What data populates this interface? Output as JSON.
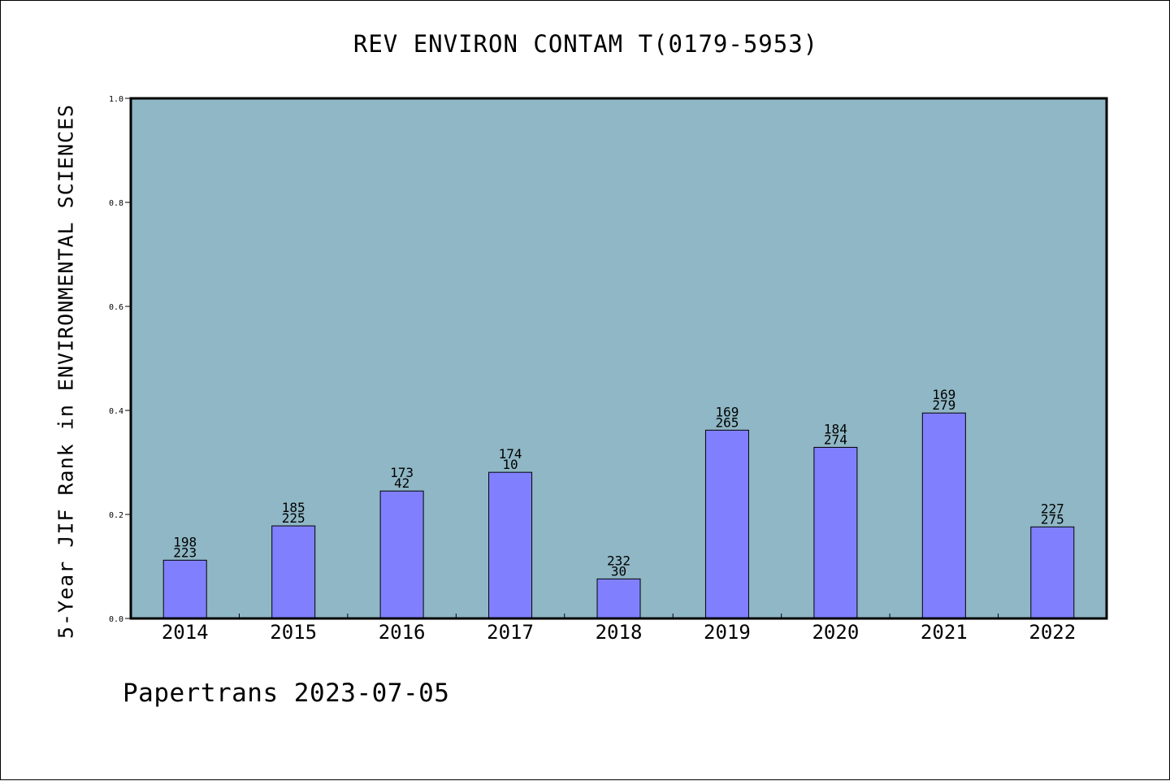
{
  "chart_data": {
    "type": "bar",
    "title": "REV ENVIRON CONTAM T(0179-5953)",
    "ylabel": "5-Year JIF Rank in ENVIRONMENTAL SCIENCES",
    "xlabel": "",
    "categories": [
      "2014",
      "2015",
      "2016",
      "2017",
      "2018",
      "2019",
      "2020",
      "2021",
      "2022"
    ],
    "values": [
      0.112,
      0.178,
      0.245,
      0.281,
      0.076,
      0.362,
      0.329,
      0.395,
      0.176
    ],
    "labels_top": [
      "198",
      "185",
      "173",
      "174",
      "232",
      "169",
      "184",
      "169",
      "227"
    ],
    "labels_bottom": [
      "223",
      "225",
      "42",
      "10",
      "30",
      "265",
      "274",
      "279",
      "275"
    ],
    "ylim": [
      0.0,
      1.0
    ],
    "yticks": [
      "0.0",
      "0.2",
      "0.4",
      "0.6",
      "0.8",
      "1.0"
    ],
    "grid": false,
    "colors": {
      "plot_background": "#8fb7c5",
      "bar_fill": "#8080ff",
      "bar_stroke": "#000000"
    }
  },
  "footer": {
    "text": "Papertrans 2023-07-05"
  }
}
